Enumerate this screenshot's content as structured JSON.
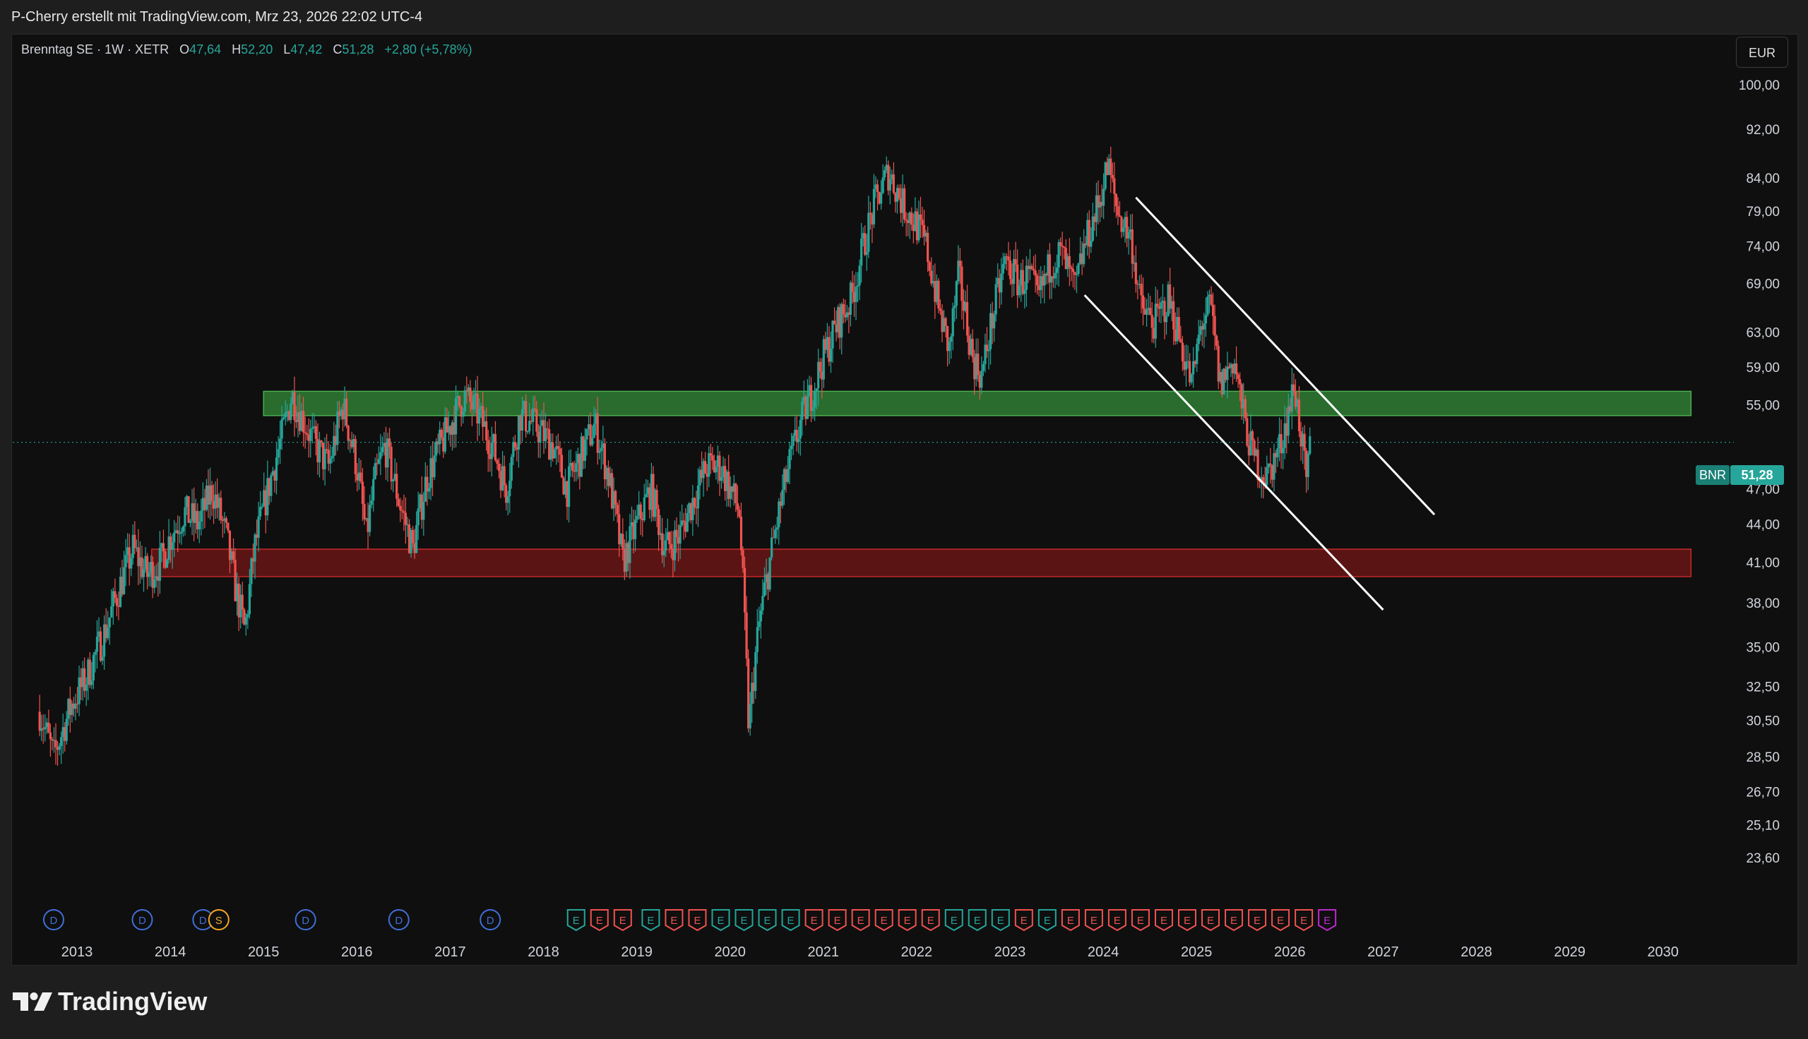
{
  "attribution": "P-Cherry erstellt mit TradingView.com, Mrz 23, 2026 22:02 UTC-4",
  "legend": {
    "symbol_line": "Brenntag SE · 1W · XETR",
    "open_label": "O",
    "open": "47,64",
    "high_label": "H",
    "high": "52,20",
    "low_label": "L",
    "low": "47,42",
    "close_label": "C",
    "close": "51,28",
    "change": "+2,80 (+5,78%)"
  },
  "currency_button": "EUR",
  "price_tag": {
    "symbol": "BNR",
    "value": "51,28"
  },
  "logo_text": "TradingView",
  "colors": {
    "up": "#26a69a",
    "down": "#ef5350",
    "background": "#0f0f0f",
    "resistance_zone": "#1b5e20",
    "support_zone": "#5c1010",
    "channel": "#ffffff"
  },
  "chart_data": {
    "type": "candlestick",
    "interval": "1W",
    "y_scale": "log",
    "x_ticks": [
      "2013",
      "2014",
      "2015",
      "2016",
      "2017",
      "2018",
      "2019",
      "2020",
      "2021",
      "2022",
      "2023",
      "2024",
      "2025",
      "2026",
      "2027",
      "2028",
      "2029",
      "2030"
    ],
    "y_ticks": [
      "100,00",
      "92,00",
      "84,00",
      "79,00",
      "74,00",
      "69,00",
      "63,00",
      "59,00",
      "55,00",
      "47,00",
      "44,00",
      "41,00",
      "38,00",
      "35,00",
      "32,50",
      "30,50",
      "28,50",
      "26,70",
      "25,10",
      "23,60"
    ],
    "last_price": 51.28,
    "zones": [
      {
        "name": "resistance",
        "from": 53.9,
        "to": 56.4,
        "x_start": 2015.0,
        "x_end": 2030.3,
        "color": "#2e7d32"
      },
      {
        "name": "support",
        "from": 39.9,
        "to": 42.0,
        "x_start": 2013.8,
        "x_end": 2030.3,
        "color": "#6d1515"
      }
    ],
    "channel_lines": [
      {
        "x1": 2024.35,
        "y1": 81.0,
        "x2": 2027.55,
        "y2": 44.8
      },
      {
        "x1": 2023.8,
        "y1": 67.5,
        "x2": 2027.0,
        "y2": 37.5
      }
    ],
    "price_path": [
      [
        2012.6,
        31
      ],
      [
        2012.75,
        28.5
      ],
      [
        2012.95,
        31.5
      ],
      [
        2013.1,
        33
      ],
      [
        2013.3,
        36
      ],
      [
        2013.45,
        39
      ],
      [
        2013.6,
        42
      ],
      [
        2013.75,
        40
      ],
      [
        2013.9,
        41
      ],
      [
        2014.0,
        43
      ],
      [
        2014.15,
        45
      ],
      [
        2014.3,
        44
      ],
      [
        2014.45,
        47
      ],
      [
        2014.6,
        43
      ],
      [
        2014.7,
        39
      ],
      [
        2014.8,
        36
      ],
      [
        2014.9,
        42
      ],
      [
        2015.05,
        47
      ],
      [
        2015.2,
        52
      ],
      [
        2015.3,
        56
      ],
      [
        2015.4,
        54
      ],
      [
        2015.55,
        51
      ],
      [
        2015.7,
        49
      ],
      [
        2015.85,
        55
      ],
      [
        2016.0,
        49
      ],
      [
        2016.1,
        43
      ],
      [
        2016.2,
        48
      ],
      [
        2016.3,
        51
      ],
      [
        2016.45,
        46
      ],
      [
        2016.6,
        42
      ],
      [
        2016.75,
        48
      ],
      [
        2016.9,
        51
      ],
      [
        2017.0,
        53
      ],
      [
        2017.15,
        56
      ],
      [
        2017.3,
        54
      ],
      [
        2017.45,
        51
      ],
      [
        2017.6,
        47
      ],
      [
        2017.75,
        54
      ],
      [
        2017.9,
        53
      ],
      [
        2018.1,
        51
      ],
      [
        2018.25,
        47
      ],
      [
        2018.4,
        50
      ],
      [
        2018.55,
        53
      ],
      [
        2018.7,
        48
      ],
      [
        2018.85,
        41
      ],
      [
        2019.0,
        44
      ],
      [
        2019.15,
        47
      ],
      [
        2019.3,
        42
      ],
      [
        2019.45,
        43
      ],
      [
        2019.6,
        46
      ],
      [
        2019.75,
        49
      ],
      [
        2019.9,
        49
      ],
      [
        2020.1,
        45
      ],
      [
        2020.2,
        30
      ],
      [
        2020.3,
        36
      ],
      [
        2020.45,
        42
      ],
      [
        2020.6,
        48
      ],
      [
        2020.75,
        53
      ],
      [
        2020.9,
        57
      ],
      [
        2021.0,
        60
      ],
      [
        2021.15,
        64
      ],
      [
        2021.3,
        67
      ],
      [
        2021.45,
        75
      ],
      [
        2021.55,
        80
      ],
      [
        2021.7,
        85
      ],
      [
        2021.85,
        80
      ],
      [
        2022.0,
        77
      ],
      [
        2022.1,
        74
      ],
      [
        2022.25,
        65
      ],
      [
        2022.35,
        61
      ],
      [
        2022.45,
        70
      ],
      [
        2022.6,
        60
      ],
      [
        2022.7,
        58
      ],
      [
        2022.8,
        64
      ],
      [
        2022.95,
        72
      ],
      [
        2023.1,
        69
      ],
      [
        2023.2,
        70
      ],
      [
        2023.3,
        67
      ],
      [
        2023.45,
        72
      ],
      [
        2023.55,
        73
      ],
      [
        2023.7,
        68
      ],
      [
        2023.8,
        74
      ],
      [
        2023.95,
        80
      ],
      [
        2024.05,
        86
      ],
      [
        2024.15,
        79
      ],
      [
        2024.3,
        75
      ],
      [
        2024.4,
        66
      ],
      [
        2024.55,
        64
      ],
      [
        2024.7,
        67
      ],
      [
        2024.85,
        61
      ],
      [
        2024.95,
        57
      ],
      [
        2025.05,
        64
      ],
      [
        2025.15,
        66
      ],
      [
        2025.25,
        57
      ],
      [
        2025.4,
        60
      ],
      [
        2025.5,
        54
      ],
      [
        2025.6,
        50
      ],
      [
        2025.75,
        48
      ],
      [
        2025.9,
        51
      ],
      [
        2026.05,
        57
      ],
      [
        2026.12,
        52
      ],
      [
        2026.18,
        47
      ],
      [
        2026.22,
        51.28
      ]
    ],
    "events": [
      {
        "type": "D",
        "x": 2012.75
      },
      {
        "type": "D",
        "x": 2013.7
      },
      {
        "type": "D",
        "x": 2014.35
      },
      {
        "type": "S",
        "x": 2014.52
      },
      {
        "type": "D",
        "x": 2015.45
      },
      {
        "type": "D",
        "x": 2016.45
      },
      {
        "type": "D",
        "x": 2017.43
      },
      {
        "type": "E",
        "x": 2018.35,
        "result": "up"
      },
      {
        "type": "E",
        "x": 2018.6,
        "result": "down"
      },
      {
        "type": "E",
        "x": 2018.85,
        "result": "down"
      },
      {
        "type": "E",
        "x": 2019.15,
        "result": "up"
      },
      {
        "type": "E",
        "x": 2019.4,
        "result": "down"
      },
      {
        "type": "E",
        "x": 2019.65,
        "result": "down"
      },
      {
        "type": "E",
        "x": 2019.9,
        "result": "up"
      },
      {
        "type": "E",
        "x": 2020.15,
        "result": "up"
      },
      {
        "type": "E",
        "x": 2020.4,
        "result": "up"
      },
      {
        "type": "E",
        "x": 2020.65,
        "result": "up"
      },
      {
        "type": "E",
        "x": 2020.9,
        "result": "down"
      },
      {
        "type": "E",
        "x": 2021.15,
        "result": "down"
      },
      {
        "type": "E",
        "x": 2021.4,
        "result": "down"
      },
      {
        "type": "E",
        "x": 2021.65,
        "result": "down"
      },
      {
        "type": "E",
        "x": 2021.9,
        "result": "down"
      },
      {
        "type": "E",
        "x": 2022.15,
        "result": "down"
      },
      {
        "type": "E",
        "x": 2022.4,
        "result": "up"
      },
      {
        "type": "E",
        "x": 2022.65,
        "result": "up"
      },
      {
        "type": "E",
        "x": 2022.9,
        "result": "up"
      },
      {
        "type": "E",
        "x": 2023.15,
        "result": "down"
      },
      {
        "type": "E",
        "x": 2023.4,
        "result": "up"
      },
      {
        "type": "E",
        "x": 2023.65,
        "result": "down"
      },
      {
        "type": "E",
        "x": 2023.9,
        "result": "down"
      },
      {
        "type": "E",
        "x": 2024.15,
        "result": "down"
      },
      {
        "type": "E",
        "x": 2024.4,
        "result": "down"
      },
      {
        "type": "E",
        "x": 2024.65,
        "result": "down"
      },
      {
        "type": "E",
        "x": 2024.9,
        "result": "down"
      },
      {
        "type": "E",
        "x": 2025.15,
        "result": "down"
      },
      {
        "type": "E",
        "x": 2025.4,
        "result": "down"
      },
      {
        "type": "E",
        "x": 2025.65,
        "result": "down"
      },
      {
        "type": "E",
        "x": 2025.9,
        "result": "down"
      },
      {
        "type": "E",
        "x": 2026.15,
        "result": "down"
      },
      {
        "type": "E",
        "x": 2026.4,
        "result": "upcoming"
      }
    ]
  }
}
